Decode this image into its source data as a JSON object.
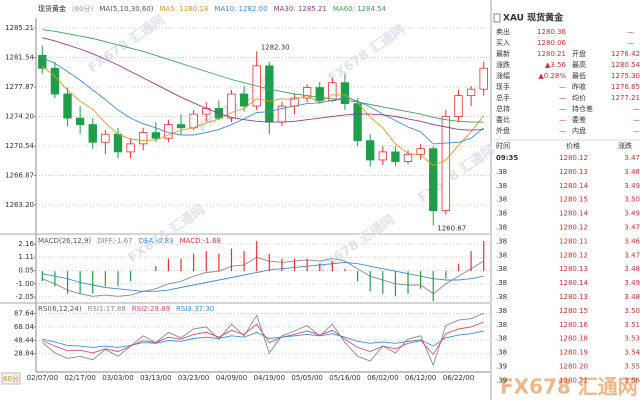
{
  "chart_data": [
    {
      "type": "candlestick",
      "title": "现货黄金",
      "subtitle": "(60分)",
      "indicator": "MA(5,10,30,60)",
      "categories": [
        "02/07/00",
        null,
        null,
        "02/17/00",
        null,
        null,
        "03/03/00",
        null,
        null,
        "03/13/00",
        null,
        null,
        "03/23/00",
        null,
        null,
        "04/09/00",
        null,
        null,
        "04/19/00",
        null,
        null,
        "05/05/00",
        null,
        null,
        "05/16/00",
        null,
        null,
        "06/02/00",
        null,
        null,
        "06/12/00",
        null,
        null,
        "06/22/00",
        null,
        null
      ],
      "open": [
        1281.8,
        1280.2,
        1277.0,
        1274.0,
        1273.2,
        1271.0,
        1272.0,
        1269.8,
        1270.8,
        1272.2,
        1271.5,
        1273.2,
        1272.8,
        1274.5,
        1275.2,
        1274.0,
        1277.0,
        1275.5,
        1280.5,
        1273.5,
        1275.5,
        1276.5,
        1277.8,
        1276.2,
        1278.4,
        1275.8,
        1271.2,
        1268.8,
        1269.8,
        1268.6,
        1269.5,
        1270.2,
        1262.5,
        1274.2,
        1276.8,
        1277.6
      ],
      "high": [
        1283.0,
        1281.0,
        1277.8,
        1275.5,
        1274.0,
        1272.5,
        1272.8,
        1271.5,
        1272.8,
        1273.5,
        1273.8,
        1274.5,
        1275.0,
        1276.0,
        1276.2,
        1277.5,
        1278.0,
        1282.3,
        1281.0,
        1276.0,
        1277.0,
        1278.2,
        1278.5,
        1279.0,
        1279.5,
        1276.5,
        1272.0,
        1270.5,
        1270.5,
        1270.0,
        1270.8,
        1270.5,
        1275.0,
        1277.5,
        1278.0,
        1281.0
      ],
      "low": [
        1279.5,
        1276.5,
        1273.0,
        1272.0,
        1270.2,
        1269.5,
        1269.0,
        1269.0,
        1270.0,
        1271.0,
        1271.0,
        1272.0,
        1272.5,
        1273.5,
        1273.8,
        1273.5,
        1274.8,
        1275.0,
        1272.0,
        1273.0,
        1274.5,
        1276.0,
        1275.8,
        1276.0,
        1275.0,
        1270.5,
        1268.0,
        1268.2,
        1268.0,
        1268.3,
        1268.8,
        1260.67,
        1262.0,
        1273.5,
        1275.5,
        1276.8
      ],
      "close": [
        1280.2,
        1277.0,
        1274.0,
        1273.2,
        1271.0,
        1272.0,
        1269.8,
        1270.8,
        1272.2,
        1271.5,
        1273.2,
        1272.8,
        1274.5,
        1275.2,
        1274.0,
        1277.0,
        1275.5,
        1280.5,
        1273.5,
        1275.5,
        1276.5,
        1277.8,
        1276.2,
        1278.4,
        1275.8,
        1271.2,
        1268.8,
        1269.8,
        1268.6,
        1269.5,
        1270.2,
        1262.5,
        1274.2,
        1276.8,
        1277.6,
        1280.21
      ],
      "high_labels": [
        null,
        null,
        null,
        null,
        null,
        null,
        null,
        null,
        null,
        null,
        null,
        null,
        null,
        null,
        null,
        null,
        null,
        "1282.30",
        null,
        null,
        null,
        null,
        null,
        null,
        null,
        null,
        null,
        null,
        null,
        null,
        null,
        null,
        null,
        null,
        null,
        null
      ],
      "low_labels": [
        null,
        null,
        null,
        null,
        null,
        null,
        null,
        null,
        null,
        null,
        null,
        null,
        null,
        null,
        null,
        null,
        null,
        null,
        null,
        null,
        null,
        null,
        null,
        null,
        null,
        null,
        null,
        null,
        null,
        null,
        null,
        "1260.67",
        null,
        null,
        null,
        null
      ],
      "up_color": "#e8322f",
      "down_color": "#1f9e4a",
      "series": [
        {
          "name": "MA5: 1280.18",
          "color": "#d89a2a",
          "values": [
            1280.5,
            1279.2,
            1277.5,
            1276.1,
            1275.1,
            1273.4,
            1272.0,
            1271.4,
            1271.2,
            1271.3,
            1271.9,
            1272.5,
            1272.8,
            1273.4,
            1273.9,
            1274.7,
            1275.2,
            1276.4,
            1276.1,
            1276.4,
            1276.3,
            1276.8,
            1275.9,
            1276.9,
            1276.9,
            1275.9,
            1274.1,
            1272.8,
            1270.8,
            1269.6,
            1269.4,
            1268.1,
            1268.8,
            1270.6,
            1272.3,
            1274.3
          ]
        },
        {
          "name": "MA10: 1282.00",
          "color": "#3b8fd9",
          "values": [
            1281.5,
            1280.8,
            1279.8,
            1278.7,
            1277.5,
            1276.3,
            1275.0,
            1274.0,
            1273.3,
            1272.8,
            1272.2,
            1271.9,
            1271.9,
            1272.2,
            1272.6,
            1273.2,
            1273.9,
            1274.7,
            1274.8,
            1275.2,
            1275.5,
            1275.8,
            1275.9,
            1276.2,
            1276.6,
            1276.1,
            1275.4,
            1274.5,
            1273.7,
            1272.9,
            1272.3,
            1270.8,
            1270.9,
            1271.0,
            1271.5,
            1272.8
          ]
        },
        {
          "name": "MA30: 1285.21",
          "color": "#9a3a8e",
          "values": [
            1284.0,
            1283.6,
            1283.1,
            1282.6,
            1282.0,
            1281.3,
            1280.6,
            1279.8,
            1279.0,
            1278.2,
            1277.4,
            1276.6,
            1275.9,
            1275.2,
            1274.6,
            1274.1,
            1273.8,
            1273.6,
            1273.5,
            1273.5,
            1273.6,
            1273.8,
            1274.0,
            1274.2,
            1274.4,
            1274.5,
            1274.5,
            1274.4,
            1274.2,
            1273.9,
            1273.6,
            1273.2,
            1272.9,
            1272.6,
            1272.5,
            1272.6
          ]
        },
        {
          "name": "MA60: 1284.54",
          "color": "#3aa35a",
          "values": [
            1285.0,
            1284.8,
            1284.5,
            1284.2,
            1283.9,
            1283.5,
            1283.1,
            1282.7,
            1282.3,
            1281.8,
            1281.3,
            1280.8,
            1280.3,
            1279.8,
            1279.3,
            1278.8,
            1278.4,
            1278.0,
            1277.6,
            1277.3,
            1277.0,
            1276.8,
            1276.6,
            1276.4,
            1276.2,
            1276.0,
            1275.7,
            1275.4,
            1275.1,
            1274.8,
            1274.5,
            1274.1,
            1273.8,
            1273.6,
            1273.5,
            1273.5
          ]
        }
      ],
      "ylim": [
        1259.84,
        1286.45
      ],
      "yticks": [
        1285.21,
        1281.54,
        1277.87,
        {
          "value": 1274.2,
          "label": "1274.20"
        },
        1270.54,
        1266.87,
        {
          "value": 1263.2,
          "label": "1263.20"
        }
      ],
      "grid": true
    },
    {
      "type": "line",
      "indicator": "MACD(26,12,9)",
      "series": [
        {
          "name": "DIFF:-1.67",
          "color": "#8a8a8a",
          "values": [
            -0.6,
            -1.0,
            -1.5,
            -1.8,
            -2.0,
            -1.9,
            -2.0,
            -1.9,
            -1.6,
            -1.4,
            -1.0,
            -0.8,
            -0.4,
            -0.1,
            0.0,
            0.4,
            0.5,
            1.1,
            0.8,
            0.7,
            0.8,
            0.9,
            0.8,
            1.0,
            0.8,
            0.2,
            -0.4,
            -0.7,
            -1.0,
            -1.1,
            -1.1,
            -1.8,
            -1.0,
            -0.4,
            0.2,
            0.8
          ]
        },
        {
          "name": "DEA:-0.83",
          "color": "#3b8fd9",
          "values": [
            -0.2,
            -0.4,
            -0.6,
            -0.9,
            -1.1,
            -1.3,
            -1.4,
            -1.5,
            -1.6,
            -1.6,
            -1.5,
            -1.3,
            -1.1,
            -0.9,
            -0.7,
            -0.5,
            -0.3,
            -0.1,
            0.1,
            0.2,
            0.3,
            0.4,
            0.5,
            0.6,
            0.7,
            0.6,
            0.4,
            0.2,
            0.0,
            -0.2,
            -0.4,
            -0.6,
            -0.7,
            -0.7,
            -0.6,
            -0.4
          ]
        },
        {
          "name": "MACD:-1.68",
          "kind": "bar",
          "color": "#e8322f",
          "down_color": "#1f9e4a",
          "values": [
            -0.8,
            -1.2,
            -1.8,
            -1.8,
            -1.8,
            -1.2,
            -1.2,
            -0.8,
            0.0,
            0.4,
            1.0,
            1.0,
            1.4,
            1.6,
            1.4,
            1.8,
            1.6,
            2.4,
            1.4,
            1.0,
            1.0,
            1.0,
            0.6,
            0.8,
            0.2,
            -0.8,
            -1.6,
            -1.8,
            -2.0,
            -1.8,
            -1.4,
            -2.4,
            -0.6,
            0.6,
            1.6,
            2.4
          ]
        }
      ],
      "ylim": [
        -2.45,
        2.8
      ],
      "yticks": [
        2.16,
        1.11,
        0.05,
        {
          "value": -1,
          "label": "-1.00"
        },
        -2.05
      ],
      "grid": true
    },
    {
      "type": "line",
      "indicator": "RSI(6,12,24)",
      "series": [
        {
          "name": "RSI1:17.88",
          "color": "#8a8a8a",
          "values": [
            45,
            30,
            22,
            25,
            20,
            35,
            25,
            40,
            55,
            45,
            60,
            52,
            65,
            68,
            50,
            72,
            55,
            85,
            30,
            55,
            62,
            70,
            55,
            72,
            45,
            25,
            18,
            40,
            30,
            50,
            55,
            12,
            70,
            78,
            80,
            88
          ]
        },
        {
          "name": "RSI2:29.89",
          "color": "#d0506a",
          "values": [
            48,
            40,
            33,
            34,
            30,
            36,
            32,
            40,
            48,
            45,
            53,
            50,
            57,
            60,
            53,
            63,
            57,
            72,
            45,
            53,
            57,
            62,
            56,
            63,
            50,
            38,
            32,
            40,
            36,
            44,
            48,
            28,
            58,
            65,
            68,
            75
          ]
        },
        {
          "name": "RSI3:37.30",
          "color": "#3b8fd9",
          "values": [
            50,
            46,
            41,
            40,
            38,
            40,
            38,
            41,
            45,
            44,
            48,
            47,
            51,
            53,
            51,
            55,
            53,
            60,
            51,
            53,
            55,
            57,
            55,
            58,
            53,
            47,
            44,
            46,
            44,
            47,
            49,
            40,
            52,
            56,
            58,
            62
          ]
        }
      ],
      "ylim": [
        5,
        100
      ],
      "yticks": [
        87.64,
        68.04,
        48.44,
        28.84
      ],
      "grid": true
    }
  ],
  "period_button": "60分",
  "watermark": "FX678 汇通网",
  "quote": {
    "title": "XAU 现货黄金",
    "rows": [
      [
        "卖出",
        "1280.36",
        "—"
      ],
      [
        "买入",
        "1280.06",
        "—"
      ],
      [
        "最新",
        "1280.21",
        "开盘",
        "1276.42"
      ],
      [
        "涨跌",
        "▲3.56",
        "最高",
        "1280.54"
      ],
      [
        "涨幅",
        "▲0.28%",
        "最低",
        "1275.30"
      ],
      [
        "现手",
        "—",
        "昨收",
        "1276.65"
      ],
      [
        "总手",
        "—",
        "均价",
        "1277.21"
      ],
      [
        "总持",
        "—",
        "持仓差",
        "—"
      ],
      [
        "委比",
        "—",
        "委差",
        "—"
      ],
      [
        "外盘",
        "—",
        "内盘",
        "—"
      ]
    ]
  },
  "trades": {
    "headers": [
      "时间",
      "价格",
      "涨跌"
    ],
    "rows": [
      [
        "09:35",
        "1280.12",
        "3.47"
      ],
      [
        ".38",
        "1280.13",
        "3.48"
      ],
      [
        ".38",
        "1280.14",
        "3.49"
      ],
      [
        ".38",
        "1280.15",
        "3.50"
      ],
      [
        ".38",
        "1280.14",
        "3.49"
      ],
      [
        ".38",
        "1280.12",
        "3.47"
      ],
      [
        ".38",
        "1280.11",
        "3.46"
      ],
      [
        ".38",
        "1280.12",
        "3.47"
      ],
      [
        ".38",
        "1280.13",
        "3.48"
      ],
      [
        ".38",
        "1280.14",
        "3.49"
      ],
      [
        ".38",
        "1280.13",
        "3.48"
      ],
      [
        ".38",
        "1280.15",
        "3.50"
      ],
      [
        ".38",
        "1280.16",
        "3.51"
      ],
      [
        ".38",
        "1280.18",
        "3.53"
      ],
      [
        ".38",
        "1280.19",
        "3.54"
      ],
      [
        ".39",
        "1280.20",
        "3.55"
      ],
      [
        ".39",
        "1280.21",
        "3.56"
      ]
    ]
  }
}
